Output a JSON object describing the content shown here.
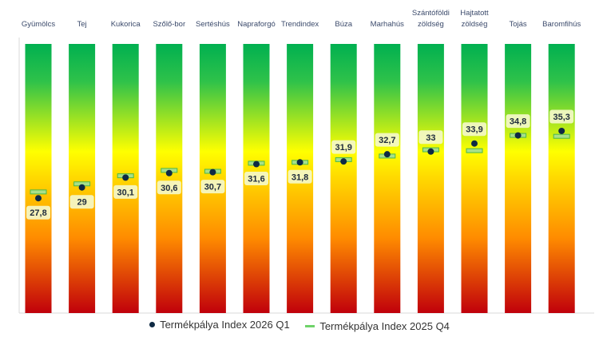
{
  "chart_data": {
    "type": "scatter",
    "categories": [
      "Gyümölcs",
      "Tej",
      "Kukorica",
      "Szőlő-bor",
      "Sertéshús",
      "Napraforgó",
      "Trendindex",
      "Búza",
      "Marhahús",
      "Szántóföldi zöldség",
      "Hajtatott zöldség",
      "Tojás",
      "Baromfihús"
    ],
    "series": [
      {
        "name": "Termékpálya Index 2026 Q1",
        "marker": "dot",
        "values": [
          27.8,
          29.0,
          30.1,
          30.6,
          30.7,
          31.6,
          31.8,
          31.9,
          32.7,
          33.0,
          33.9,
          34.8,
          35.3
        ],
        "labels": [
          "27,8",
          "29",
          "30,1",
          "30,6",
          "30,7",
          "31,6",
          "31,8",
          "31,9",
          "32,7",
          "33",
          "33,9",
          "34,8",
          "35,3"
        ]
      },
      {
        "name": "Termékpálya Index 2025 Q4",
        "marker": "dash",
        "values": [
          28.5,
          29.4,
          30.3,
          30.9,
          30.8,
          31.7,
          31.8,
          32.1,
          32.5,
          33.2,
          33.1,
          34.8,
          34.7
        ]
      }
    ],
    "ylim": [
      15,
      45
    ],
    "background_gradient": [
      "#c0000b",
      "#ff8c00",
      "#ffd800",
      "#ffff00",
      "#2fc24a",
      "#00b050"
    ],
    "legend": "bottom",
    "grid": false
  },
  "colors": {
    "marker_dot": "#0f2a44",
    "marker_dash_fill": "#a8e08a",
    "marker_dash_stroke": "#4cb848",
    "label_box": "#f4f7c9"
  }
}
